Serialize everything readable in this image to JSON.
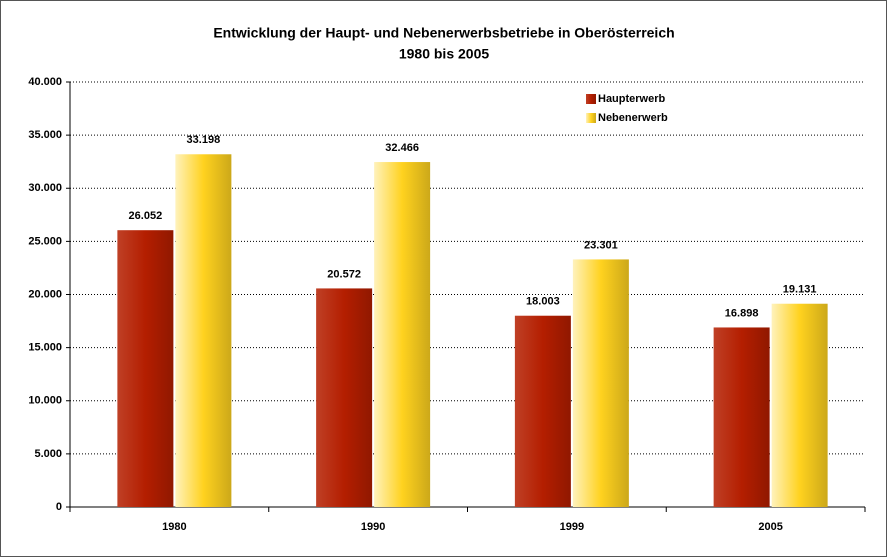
{
  "chart_data": {
    "type": "bar",
    "title": "Entwicklung der Haupt- und Nebenerwerbsbetriebe in Oberösterreich",
    "subtitle": "1980 bis 2005",
    "categories": [
      "1980",
      "1990",
      "1999",
      "2005"
    ],
    "series": [
      {
        "name": "Haupterwerb",
        "color": "#b41e00",
        "values": [
          26052,
          20572,
          18003,
          16898
        ],
        "value_labels": [
          "26.052",
          "20.572",
          "18.003",
          "16.898"
        ]
      },
      {
        "name": "Nebenerwerb",
        "color": "#ffd21f",
        "values": [
          33198,
          32466,
          23301,
          19131
        ],
        "value_labels": [
          "33.198",
          "32.466",
          "23.301",
          "19.131"
        ]
      }
    ],
    "ylim": [
      0,
      40000
    ],
    "yticks": [
      0,
      {
        "value": 5000,
        "label": "5.000"
      },
      {
        "value": 10000,
        "label": "10.000"
      },
      {
        "value": 15000,
        "label": "15.000"
      },
      {
        "value": 20000,
        "label": "20.000"
      },
      {
        "value": 25000,
        "label": "25.000"
      },
      {
        "value": 30000,
        "label": "30.000"
      },
      {
        "value": 35000,
        "label": "35.000"
      },
      {
        "value": 40000,
        "label": "40.000"
      }
    ],
    "grid": true,
    "legend": "upper right"
  }
}
